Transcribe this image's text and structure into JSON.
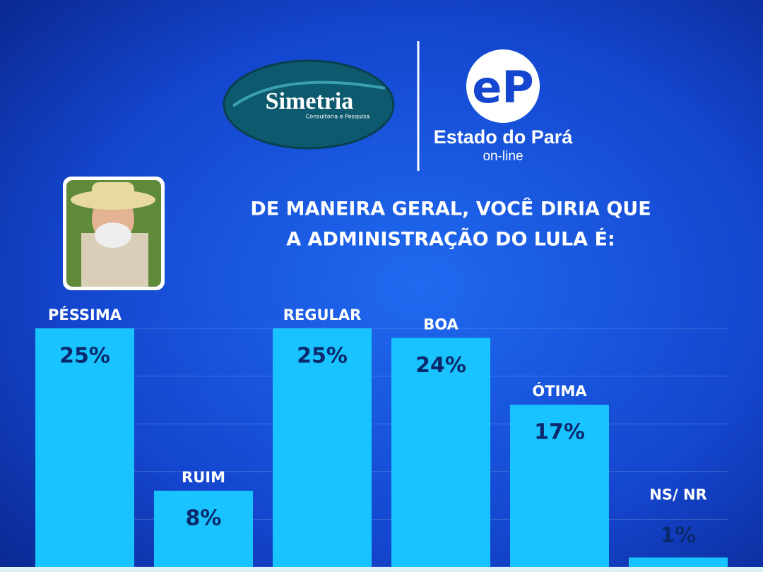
{
  "logos": {
    "simetria": "Simetria",
    "simetria_sub": "Consultoria e Pesquisa",
    "estado": "Estado do Pará",
    "estado_sub": "on-line"
  },
  "chart_data": {
    "type": "bar",
    "title": [
      "DE MANEIRA GERAL, VOCÊ DIRIA QUE",
      "A ADMINISTRAÇÃO DO LULA É:"
    ],
    "categories": [
      "PÉSSIMA",
      "RUIM",
      "REGULAR",
      "BOA",
      "ÓTIMA",
      "NS/ NR"
    ],
    "values": [
      25,
      8,
      25,
      24,
      17,
      1
    ],
    "value_labels": [
      "25%",
      "8%",
      "25%",
      "24%",
      "17%",
      "1%"
    ],
    "color": "#19c3ff",
    "ylim": [
      0,
      25
    ],
    "yticks": [
      0,
      5,
      10,
      15,
      20,
      25
    ],
    "grid": true
  }
}
